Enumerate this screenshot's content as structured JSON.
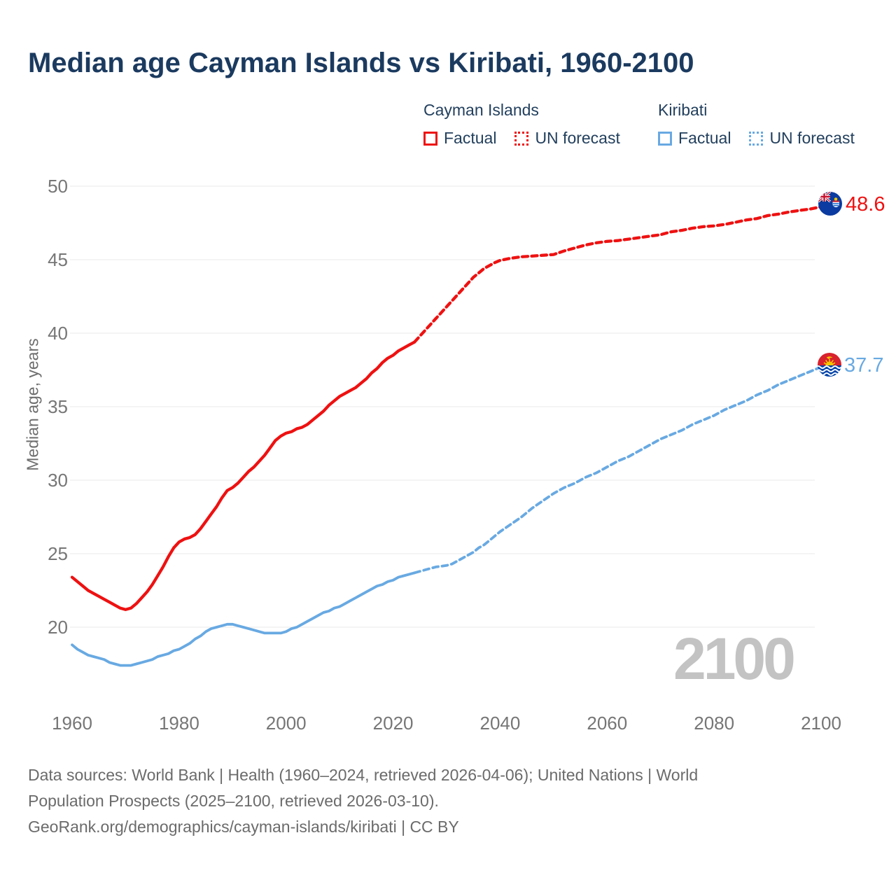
{
  "title": "Median age Cayman Islands vs Kiribati, 1960-2100",
  "watermark": "2100",
  "colors": {
    "cayman": "#ee1111",
    "kiribati": "#68a9e2",
    "title_text": "#1b3a5f",
    "legend_text": "#23405e",
    "axis_text": "#767676",
    "gridline": "#e9e9e9",
    "watermark_text": "#c3c3c3",
    "footer_text": "#6b6b6b"
  },
  "legend": {
    "groups": [
      {
        "name": "Cayman Islands",
        "color": "#ee1111",
        "items": [
          {
            "label": "Factual",
            "style": "solid"
          },
          {
            "label": "UN forecast",
            "style": "dotted"
          }
        ]
      },
      {
        "name": "Kiribati",
        "color": "#68a9e2",
        "items": [
          {
            "label": "Factual",
            "style": "solid"
          },
          {
            "label": "UN forecast",
            "style": "dotted"
          }
        ]
      }
    ]
  },
  "end_labels": {
    "cayman": "48.6",
    "kiribati": "37.7"
  },
  "footer": {
    "line1": "Data sources: World Bank | Health (1960–2024, retrieved 2026-04-06); United Nations | World",
    "line2": "Population Prospects (2025–2100, retrieved 2026-03-10).",
    "line3": "GeoRank.org/demographics/cayman-islands/kiribati | CC BY"
  },
  "chart_data": {
    "type": "line",
    "title": "Median age Cayman Islands vs Kiribati, 1960-2100",
    "xlabel": "",
    "ylabel": "Median age, years",
    "x_ticks": [
      1960,
      1980,
      2000,
      2020,
      2040,
      2060,
      2080,
      2100
    ],
    "y_ticks": [
      20,
      25,
      30,
      35,
      40,
      45,
      50
    ],
    "xlim": [
      1960,
      2100
    ],
    "ylim": [
      17,
      50
    ],
    "grid": "horizontal",
    "legend_position": "top-right",
    "series": [
      {
        "name": "Cayman Islands — Factual",
        "color": "#ee1111",
        "style": "solid",
        "width": 4.3,
        "points": [
          [
            1960,
            23.4
          ],
          [
            1961,
            23.1
          ],
          [
            1962,
            22.8
          ],
          [
            1963,
            22.5
          ],
          [
            1964,
            22.3
          ],
          [
            1965,
            22.1
          ],
          [
            1966,
            21.9
          ],
          [
            1967,
            21.7
          ],
          [
            1968,
            21.5
          ],
          [
            1969,
            21.3
          ],
          [
            1970,
            21.2
          ],
          [
            1971,
            21.3
          ],
          [
            1972,
            21.6
          ],
          [
            1973,
            22.0
          ],
          [
            1974,
            22.4
          ],
          [
            1975,
            22.9
          ],
          [
            1976,
            23.5
          ],
          [
            1977,
            24.1
          ],
          [
            1978,
            24.8
          ],
          [
            1979,
            25.4
          ],
          [
            1980,
            25.8
          ],
          [
            1981,
            26.0
          ],
          [
            1982,
            26.1
          ],
          [
            1983,
            26.3
          ],
          [
            1984,
            26.7
          ],
          [
            1985,
            27.2
          ],
          [
            1986,
            27.7
          ],
          [
            1987,
            28.2
          ],
          [
            1988,
            28.8
          ],
          [
            1989,
            29.3
          ],
          [
            1990,
            29.5
          ],
          [
            1991,
            29.8
          ],
          [
            1992,
            30.2
          ],
          [
            1993,
            30.6
          ],
          [
            1994,
            30.9
          ],
          [
            1995,
            31.3
          ],
          [
            1996,
            31.7
          ],
          [
            1997,
            32.2
          ],
          [
            1998,
            32.7
          ],
          [
            1999,
            33.0
          ],
          [
            2000,
            33.2
          ],
          [
            2001,
            33.3
          ],
          [
            2002,
            33.5
          ],
          [
            2003,
            33.6
          ],
          [
            2004,
            33.8
          ],
          [
            2005,
            34.1
          ],
          [
            2006,
            34.4
          ],
          [
            2007,
            34.7
          ],
          [
            2008,
            35.1
          ],
          [
            2009,
            35.4
          ],
          [
            2010,
            35.7
          ],
          [
            2011,
            35.9
          ],
          [
            2012,
            36.1
          ],
          [
            2013,
            36.3
          ],
          [
            2014,
            36.6
          ],
          [
            2015,
            36.9
          ],
          [
            2016,
            37.3
          ],
          [
            2017,
            37.6
          ],
          [
            2018,
            38.0
          ],
          [
            2019,
            38.3
          ],
          [
            2020,
            38.5
          ],
          [
            2021,
            38.8
          ],
          [
            2022,
            39.0
          ],
          [
            2023,
            39.2
          ],
          [
            2024,
            39.4
          ]
        ]
      },
      {
        "name": "Cayman Islands — UN forecast",
        "color": "#ee1111",
        "style": "dashed",
        "width": 4.3,
        "points": [
          [
            2024,
            39.4
          ],
          [
            2025,
            39.8
          ],
          [
            2026,
            40.2
          ],
          [
            2027,
            40.6
          ],
          [
            2028,
            41.0
          ],
          [
            2029,
            41.4
          ],
          [
            2030,
            41.8
          ],
          [
            2031,
            42.2
          ],
          [
            2032,
            42.6
          ],
          [
            2033,
            43.0
          ],
          [
            2034,
            43.4
          ],
          [
            2035,
            43.8
          ],
          [
            2036,
            44.1
          ],
          [
            2037,
            44.4
          ],
          [
            2038,
            44.6
          ],
          [
            2039,
            44.8
          ],
          [
            2040,
            44.95
          ],
          [
            2042,
            45.1
          ],
          [
            2044,
            45.2
          ],
          [
            2046,
            45.25
          ],
          [
            2048,
            45.3
          ],
          [
            2050,
            45.35
          ],
          [
            2052,
            45.6
          ],
          [
            2054,
            45.8
          ],
          [
            2056,
            46.0
          ],
          [
            2058,
            46.15
          ],
          [
            2060,
            46.25
          ],
          [
            2062,
            46.3
          ],
          [
            2064,
            46.4
          ],
          [
            2066,
            46.5
          ],
          [
            2068,
            46.6
          ],
          [
            2070,
            46.7
          ],
          [
            2072,
            46.9
          ],
          [
            2074,
            47.0
          ],
          [
            2076,
            47.15
          ],
          [
            2078,
            47.25
          ],
          [
            2080,
            47.3
          ],
          [
            2082,
            47.4
          ],
          [
            2084,
            47.55
          ],
          [
            2086,
            47.7
          ],
          [
            2088,
            47.8
          ],
          [
            2090,
            48.0
          ],
          [
            2092,
            48.1
          ],
          [
            2094,
            48.25
          ],
          [
            2096,
            48.35
          ],
          [
            2098,
            48.45
          ],
          [
            2100,
            48.6
          ]
        ]
      },
      {
        "name": "Kiribati — Factual",
        "color": "#68a9e2",
        "style": "solid",
        "width": 3.8,
        "points": [
          [
            1960,
            18.8
          ],
          [
            1961,
            18.5
          ],
          [
            1962,
            18.3
          ],
          [
            1963,
            18.1
          ],
          [
            1964,
            18.0
          ],
          [
            1965,
            17.9
          ],
          [
            1966,
            17.8
          ],
          [
            1967,
            17.6
          ],
          [
            1968,
            17.5
          ],
          [
            1969,
            17.4
          ],
          [
            1970,
            17.4
          ],
          [
            1971,
            17.4
          ],
          [
            1972,
            17.5
          ],
          [
            1973,
            17.6
          ],
          [
            1974,
            17.7
          ],
          [
            1975,
            17.8
          ],
          [
            1976,
            18.0
          ],
          [
            1977,
            18.1
          ],
          [
            1978,
            18.2
          ],
          [
            1979,
            18.4
          ],
          [
            1980,
            18.5
          ],
          [
            1981,
            18.7
          ],
          [
            1982,
            18.9
          ],
          [
            1983,
            19.2
          ],
          [
            1984,
            19.4
          ],
          [
            1985,
            19.7
          ],
          [
            1986,
            19.9
          ],
          [
            1987,
            20.0
          ],
          [
            1988,
            20.1
          ],
          [
            1989,
            20.2
          ],
          [
            1990,
            20.2
          ],
          [
            1991,
            20.1
          ],
          [
            1992,
            20.0
          ],
          [
            1993,
            19.9
          ],
          [
            1994,
            19.8
          ],
          [
            1995,
            19.7
          ],
          [
            1996,
            19.6
          ],
          [
            1997,
            19.6
          ],
          [
            1998,
            19.6
          ],
          [
            1999,
            19.6
          ],
          [
            2000,
            19.7
          ],
          [
            2001,
            19.9
          ],
          [
            2002,
            20.0
          ],
          [
            2003,
            20.2
          ],
          [
            2004,
            20.4
          ],
          [
            2005,
            20.6
          ],
          [
            2006,
            20.8
          ],
          [
            2007,
            21.0
          ],
          [
            2008,
            21.1
          ],
          [
            2009,
            21.3
          ],
          [
            2010,
            21.4
          ],
          [
            2011,
            21.6
          ],
          [
            2012,
            21.8
          ],
          [
            2013,
            22.0
          ],
          [
            2014,
            22.2
          ],
          [
            2015,
            22.4
          ],
          [
            2016,
            22.6
          ],
          [
            2017,
            22.8
          ],
          [
            2018,
            22.9
          ],
          [
            2019,
            23.1
          ],
          [
            2020,
            23.2
          ],
          [
            2021,
            23.4
          ],
          [
            2022,
            23.5
          ],
          [
            2023,
            23.6
          ],
          [
            2024,
            23.7
          ]
        ]
      },
      {
        "name": "Kiribati — UN forecast",
        "color": "#68a9e2",
        "style": "dashed",
        "width": 3.8,
        "points": [
          [
            2024,
            23.7
          ],
          [
            2025,
            23.8
          ],
          [
            2026,
            23.9
          ],
          [
            2027,
            24.0
          ],
          [
            2028,
            24.1
          ],
          [
            2029,
            24.15
          ],
          [
            2030,
            24.2
          ],
          [
            2031,
            24.3
          ],
          [
            2032,
            24.5
          ],
          [
            2033,
            24.7
          ],
          [
            2034,
            24.9
          ],
          [
            2035,
            25.1
          ],
          [
            2036,
            25.4
          ],
          [
            2037,
            25.6
          ],
          [
            2038,
            25.9
          ],
          [
            2039,
            26.2
          ],
          [
            2040,
            26.5
          ],
          [
            2042,
            27.0
          ],
          [
            2044,
            27.5
          ],
          [
            2046,
            28.1
          ],
          [
            2048,
            28.6
          ],
          [
            2050,
            29.1
          ],
          [
            2052,
            29.5
          ],
          [
            2054,
            29.8
          ],
          [
            2056,
            30.2
          ],
          [
            2058,
            30.5
          ],
          [
            2060,
            30.9
          ],
          [
            2062,
            31.3
          ],
          [
            2064,
            31.6
          ],
          [
            2066,
            32.0
          ],
          [
            2068,
            32.4
          ],
          [
            2070,
            32.8
          ],
          [
            2072,
            33.1
          ],
          [
            2074,
            33.4
          ],
          [
            2076,
            33.8
          ],
          [
            2078,
            34.1
          ],
          [
            2080,
            34.4
          ],
          [
            2082,
            34.8
          ],
          [
            2084,
            35.1
          ],
          [
            2086,
            35.4
          ],
          [
            2088,
            35.8
          ],
          [
            2090,
            36.1
          ],
          [
            2092,
            36.5
          ],
          [
            2094,
            36.8
          ],
          [
            2096,
            37.1
          ],
          [
            2098,
            37.4
          ],
          [
            2100,
            37.7
          ]
        ]
      }
    ],
    "end_labels": [
      {
        "series": "Cayman Islands",
        "year": 2100,
        "value": 48.6
      },
      {
        "series": "Kiribati",
        "year": 2100,
        "value": 37.7
      }
    ]
  }
}
